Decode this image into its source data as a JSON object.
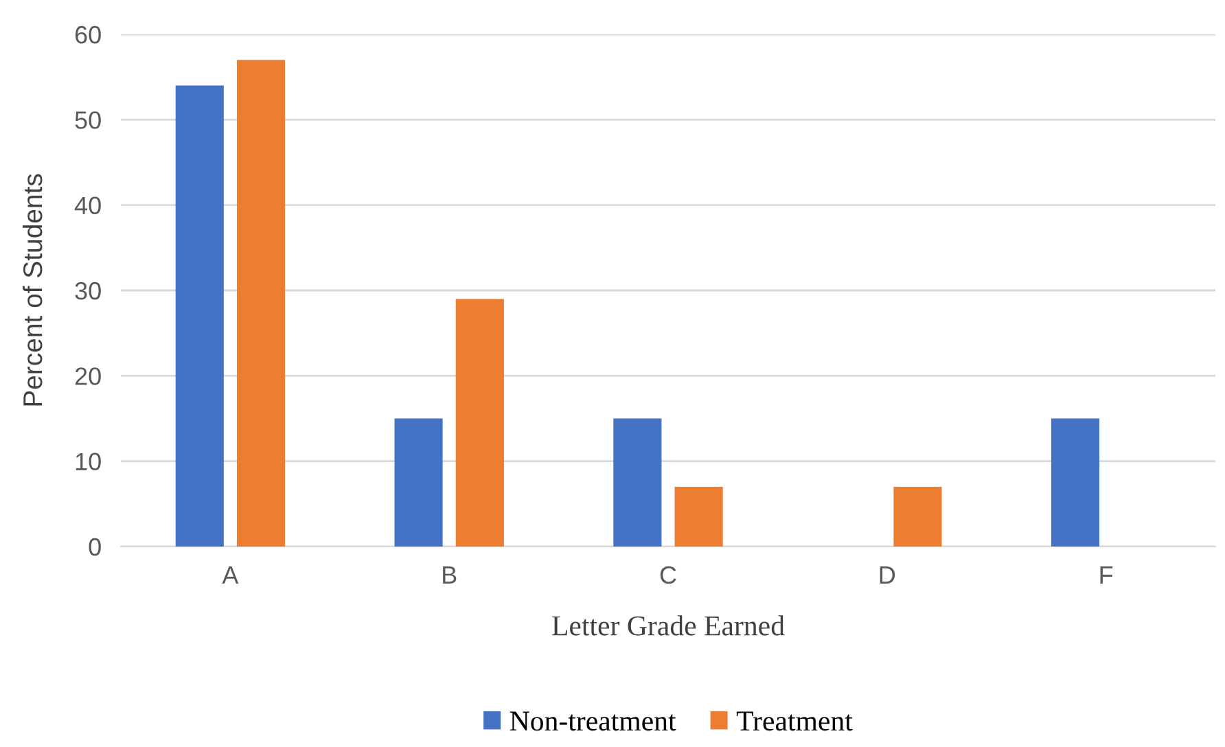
{
  "chart_data": {
    "type": "bar",
    "xlabel": "Letter Grade Earned",
    "ylabel": "Percent of Students",
    "categories": [
      "A",
      "B",
      "C",
      "D",
      "F"
    ],
    "series": [
      {
        "name": "Non-treatment",
        "color": "#4472c4",
        "values": [
          54,
          15,
          15,
          0,
          15
        ]
      },
      {
        "name": "Treatment",
        "color": "#ed7d31",
        "values": [
          57,
          29,
          7,
          7,
          0
        ]
      }
    ],
    "ylim": [
      0,
      60
    ],
    "yticks": [
      0,
      10,
      20,
      30,
      40,
      50,
      60
    ],
    "grid": "y",
    "legend": "bottom"
  }
}
